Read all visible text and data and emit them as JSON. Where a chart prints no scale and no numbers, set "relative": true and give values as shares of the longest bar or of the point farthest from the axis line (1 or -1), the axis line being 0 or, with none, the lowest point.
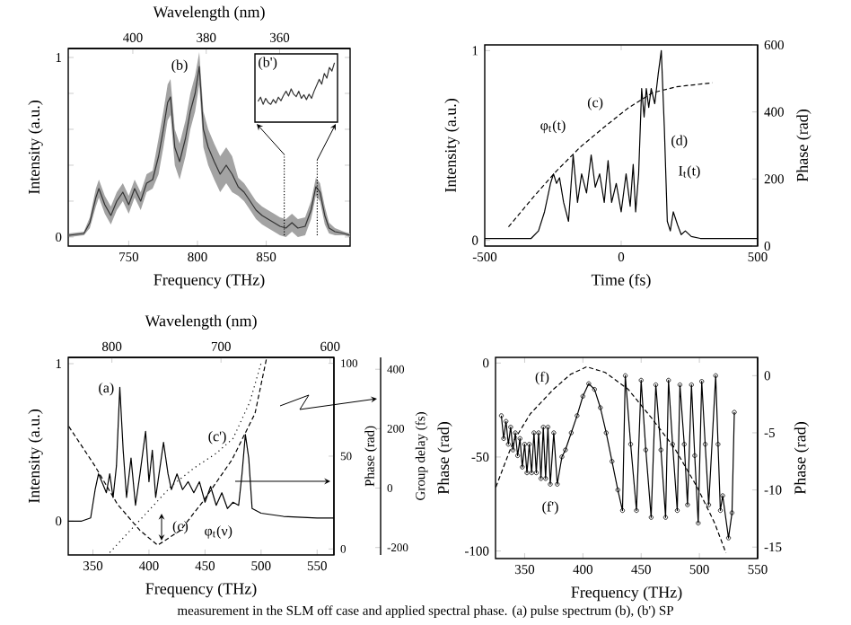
{
  "chart_data": [
    {
      "type": "line",
      "xlabel": "Frequency (THz)",
      "ylabel": "Intensity (a.u.)",
      "x2label": "Wavelength (nm)",
      "xlim": [
        706,
        911
      ],
      "xticks": [
        750,
        800,
        850
      ],
      "ylim": [
        -0.05,
        1.05
      ],
      "yticks": [
        0,
        {
          "value": 0.2,
          "label": null
        },
        {
          "value": 0.4,
          "label": null
        },
        {
          "value": 0.6,
          "label": null
        },
        {
          "value": 0.8,
          "label": null
        },
        1
      ],
      "x2lim": [
        417.6,
        340.8
      ],
      "x2ticks": [
        400,
        380,
        360
      ],
      "series": [
        {
          "color": "#333333",
          "x": [
            706.5,
            717.4,
            721.7,
            726.1,
            728.3,
            732.6,
            737,
            741.3,
            745.7,
            750,
            754.3,
            758.7,
            763,
            767.4,
            771.7,
            775.2,
            778.3,
            780.4,
            783.5,
            787,
            791.3,
            794.8,
            798.3,
            801.3,
            804.3,
            807.8,
            812.2,
            816.5,
            820.9,
            825.2,
            829.6,
            833.9,
            838.3,
            842.6,
            847,
            851.3,
            855.7,
            860,
            864.3,
            868.7,
            873,
            878.3,
            882.6,
            886.1,
            889.1,
            892.6,
            895.7,
            900,
            906.5,
            910.9
          ],
          "values": [
            0.01,
            0.02,
            0.08,
            0.22,
            0.27,
            0.18,
            0.12,
            0.2,
            0.25,
            0.18,
            0.27,
            0.2,
            0.3,
            0.32,
            0.45,
            0.6,
            0.75,
            0.78,
            0.5,
            0.42,
            0.55,
            0.7,
            0.8,
            0.95,
            0.6,
            0.5,
            0.42,
            0.35,
            0.4,
            0.35,
            0.28,
            0.25,
            0.2,
            0.15,
            0.12,
            0.1,
            0.08,
            0.06,
            0.05,
            0.08,
            0.05,
            0.06,
            0.15,
            0.28,
            0.25,
            0.12,
            0.05,
            0.03,
            0.02,
            0.01
          ],
          "upper": [
            0.02,
            0.03,
            0.11,
            0.27,
            0.32,
            0.23,
            0.17,
            0.25,
            0.3,
            0.23,
            0.32,
            0.25,
            0.35,
            0.37,
            0.55,
            0.7,
            0.85,
            0.88,
            0.6,
            0.52,
            0.65,
            0.8,
            0.9,
            1.03,
            0.7,
            0.6,
            0.52,
            0.45,
            0.5,
            0.45,
            0.33,
            0.3,
            0.25,
            0.2,
            0.17,
            0.15,
            0.13,
            0.11,
            0.1,
            0.13,
            0.1,
            0.11,
            0.2,
            0.33,
            0.3,
            0.17,
            0.08,
            0.05,
            0.03,
            0.02
          ],
          "lower": [
            0,
            0.01,
            0.05,
            0.17,
            0.22,
            0.13,
            0.07,
            0.15,
            0.2,
            0.13,
            0.22,
            0.15,
            0.25,
            0.27,
            0.35,
            0.5,
            0.65,
            0.68,
            0.4,
            0.32,
            0.45,
            0.6,
            0.7,
            0.85,
            0.5,
            0.4,
            0.32,
            0.25,
            0.3,
            0.25,
            0.23,
            0.2,
            0.15,
            0.1,
            0.07,
            0.05,
            0.03,
            0.01,
            0,
            0.03,
            0,
            0.01,
            0.1,
            0.23,
            0.2,
            0.07,
            0.02,
            0.01,
            0.01,
            0
          ]
        }
      ],
      "annotations": [
        "(b)"
      ]
    },
    {
      "type": "line",
      "relative": true,
      "color": "#333333",
      "categories": [
        null,
        null,
        null,
        null,
        null,
        null,
        null,
        null,
        null,
        null,
        null,
        null,
        null,
        null,
        null,
        null,
        null,
        null,
        null,
        null,
        null,
        null,
        null,
        null,
        null,
        null,
        null,
        null,
        null,
        null,
        null
      ],
      "values": [
        0.35,
        0.42,
        0.3,
        0.4,
        0.33,
        0.3,
        0.38,
        0.32,
        0.42,
        0.36,
        0.45,
        0.52,
        0.44,
        0.56,
        0.47,
        0.43,
        0.52,
        0.4,
        0.46,
        0.38,
        0.47,
        0.4,
        0.52,
        0.62,
        0.72,
        0.64,
        0.82,
        0.74,
        0.92,
        0.86,
        1.0
      ],
      "annotations": [
        "(b')"
      ]
    },
    {
      "type": "line",
      "xlabel": "Time (fs)",
      "ylabel": "Intensity (a.u.)",
      "y2label": "Phase (rad)",
      "xlim": [
        -500,
        500
      ],
      "xticks": [
        -500,
        0,
        500
      ],
      "ylim": [
        -0.03,
        1.03
      ],
      "yticks": [
        0,
        1
      ],
      "y2lim": [
        0,
        600
      ],
      "y2ticks": [
        0,
        200,
        400,
        600
      ],
      "series": [
        {
          "color": "#000000",
          "x": [
            -500,
            -330,
            -303,
            -281,
            -259,
            -248,
            -237,
            -226,
            -211,
            -193,
            -176,
            -160,
            -145,
            -127,
            -110,
            -95,
            -79,
            -62,
            -48,
            -35,
            -18,
            0,
            18,
            33,
            44,
            53,
            64,
            75,
            84,
            92,
            101,
            110,
            123,
            136,
            147,
            158,
            169,
            180,
            191,
            207,
            220,
            235,
            257,
            290,
            500
          ],
          "values": [
            0.01,
            0.01,
            0.05,
            0.15,
            0.3,
            0.35,
            0.3,
            0.33,
            0.2,
            0.1,
            0.45,
            0.2,
            0.35,
            0.25,
            0.45,
            0.28,
            0.35,
            0.2,
            0.42,
            0.2,
            0.3,
            0.15,
            0.35,
            0.18,
            0.4,
            0.15,
            0.35,
            0.8,
            0.65,
            0.8,
            0.7,
            0.8,
            0.72,
            0.88,
            1.0,
            0.6,
            0.1,
            0.05,
            0.15,
            0.08,
            0.03,
            0.05,
            0.02,
            0.01,
            0.01
          ]
        },
        {
          "color": "#000000",
          "axis": "y2",
          "line_style": "dashed",
          "x": [
            -413,
            -325,
            -237,
            -149,
            -62,
            26,
            114,
            202,
            334
          ],
          "values": [
            57,
            143,
            224,
            296,
            355,
            412,
            457,
            475,
            487
          ]
        }
      ],
      "annotations": [
        "φ$_{t}$(t)",
        "(c)",
        "(d)",
        "I$_{t}$(t)"
      ]
    },
    {
      "type": "line",
      "xlabel": "Frequency (THz)",
      "ylabel": "Intensity (a.u.)",
      "x2label": "Wavelength (nm)",
      "y2label": "Phase (rad)",
      "y3label": "Group delay (fs)",
      "xlim": [
        328,
        565
      ],
      "xticks": [
        350,
        400,
        450,
        500,
        550
      ],
      "ylim": [
        -0.215,
        1.04
      ],
      "yticks": [
        0,
        1
      ],
      "x2lim": [
        840,
        596.5
      ],
      "x2ticks": [
        800,
        700,
        600
      ],
      "y2lim": [
        -3.2,
        103.2
      ],
      "y2ticks": [
        0,
        50,
        100
      ],
      "y3lim": [
        -225,
        440
      ],
      "y3ticks": [
        -200,
        0,
        200,
        400
      ],
      "series": [
        {
          "color": "#000000",
          "x": [
            328,
            340,
            348,
            352,
            355,
            358,
            362,
            365,
            368,
            371,
            374,
            377,
            380,
            384,
            388,
            392,
            397,
            400,
            403,
            406,
            409,
            413,
            417,
            420,
            425,
            430,
            435,
            440,
            445,
            450,
            455,
            460,
            465,
            470,
            475,
            480,
            483,
            486,
            489,
            492,
            500,
            520,
            550,
            565
          ],
          "values": [
            0,
            0,
            0.02,
            0.2,
            0.3,
            0.25,
            0.18,
            0.3,
            0.15,
            0.35,
            0.85,
            0.45,
            0.15,
            0.4,
            0.1,
            0.3,
            0.57,
            0.25,
            0.45,
            0.15,
            0.3,
            0.5,
            0.3,
            0.2,
            0.3,
            0.2,
            0.25,
            0.18,
            0.25,
            0.12,
            0.22,
            0.1,
            0.18,
            0.08,
            0.12,
            0.1,
            0.3,
            0.55,
            0.4,
            0.08,
            0.05,
            0.03,
            0.02,
            0.02
          ]
        },
        {
          "color": "#000000",
          "axis": "y2",
          "line_style": "dashed",
          "x": [
            328.5,
            351.5,
            372,
            392,
            407.8,
            428,
            448.7,
            474,
            494.6,
            505
          ],
          "values": [
            66,
            45,
            24,
            10,
            2,
            10,
            26,
            48,
            73,
            103
          ]
        },
        {
          "color": "#000000",
          "axis": "y3",
          "line_style": "dotted",
          "x": [
            365,
            380,
            400,
            420,
            440,
            460,
            475,
            490,
            500
          ],
          "values": [
            -217,
            -156,
            -75,
            7,
            67,
            117,
            167,
            290,
            420
          ]
        }
      ],
      "annotations": [
        "(a)",
        "(c')",
        "(c)",
        "φ$_{t}$(ν)",
        "measurement in the SLM off case and applied spectral phase. (a) pulse spectrum (b), (b') SP"
      ]
    },
    {
      "type": "line",
      "xlabel": "Frequency (THz)",
      "ylabel": "Phase (rad)",
      "y2label": "Phase (rad)",
      "xlim": [
        325,
        550
      ],
      "xticks": [
        350,
        400,
        450,
        500,
        550
      ],
      "ylim": [
        -104,
        3
      ],
      "yticks": [
        0,
        -50,
        -100
      ],
      "y2lim": [
        -16,
        1.6
      ],
      "y2ticks": [
        0,
        -5,
        -10,
        -15
      ],
      "series": [
        {
          "color": "#000000",
          "line_style": "dashed",
          "x": [
            325.3,
            340.1,
            354.9,
            374.7,
            389.5,
            403.3,
            419.1,
            438.9,
            458.6,
            478.4,
            498.1,
            513,
            522.8
          ],
          "values": [
            -66,
            -42,
            -27,
            -14,
            -6,
            -2,
            -5,
            -14,
            -29,
            -45,
            -66,
            -85,
            -101
          ]
        },
        {
          "color": "#000000",
          "axis": "y2",
          "marker": "circle",
          "x": [
            330,
            332,
            334,
            336,
            338,
            340,
            342,
            344,
            346,
            348,
            350,
            352,
            354,
            356,
            358,
            360,
            362,
            364,
            366,
            368,
            370,
            372,
            375,
            378,
            382,
            385,
            390,
            395,
            400,
            405,
            410,
            415,
            420,
            425,
            430,
            434,
            436.4,
            441,
            446,
            450,
            454,
            458.6,
            462.6,
            467,
            471,
            473.5,
            477,
            481,
            483.3,
            487,
            489.8,
            493.2,
            496,
            499,
            502,
            505,
            508,
            514,
            516,
            518,
            520,
            525,
            528,
            530
          ],
          "values": [
            -3.5,
            -5.5,
            -4,
            -6,
            -4.5,
            -6.5,
            -5,
            -7,
            -5.5,
            -8,
            -6,
            -8.5,
            -6,
            -8.5,
            -5,
            -8.5,
            -5,
            -9,
            -4.5,
            -9,
            -4.5,
            -9.5,
            -5,
            -9.5,
            -7.1,
            -6.5,
            -5,
            -3.5,
            -1.8,
            -0.7,
            -1.2,
            -2.8,
            -5,
            -7.5,
            -10,
            -11.8,
            0,
            -6,
            -11.8,
            -0.4,
            -6.5,
            -12.4,
            -0.8,
            -6.5,
            -12.4,
            -0.4,
            -6,
            -11.8,
            -0.8,
            -6,
            -11.3,
            -0.8,
            -7,
            -12.9,
            -0.5,
            -6,
            -11.3,
            0,
            -6,
            -11.8,
            -10.5,
            -14.2,
            -12,
            -3.2
          ]
        }
      ],
      "annotations": [
        "(f)",
        "(f')"
      ]
    }
  ]
}
